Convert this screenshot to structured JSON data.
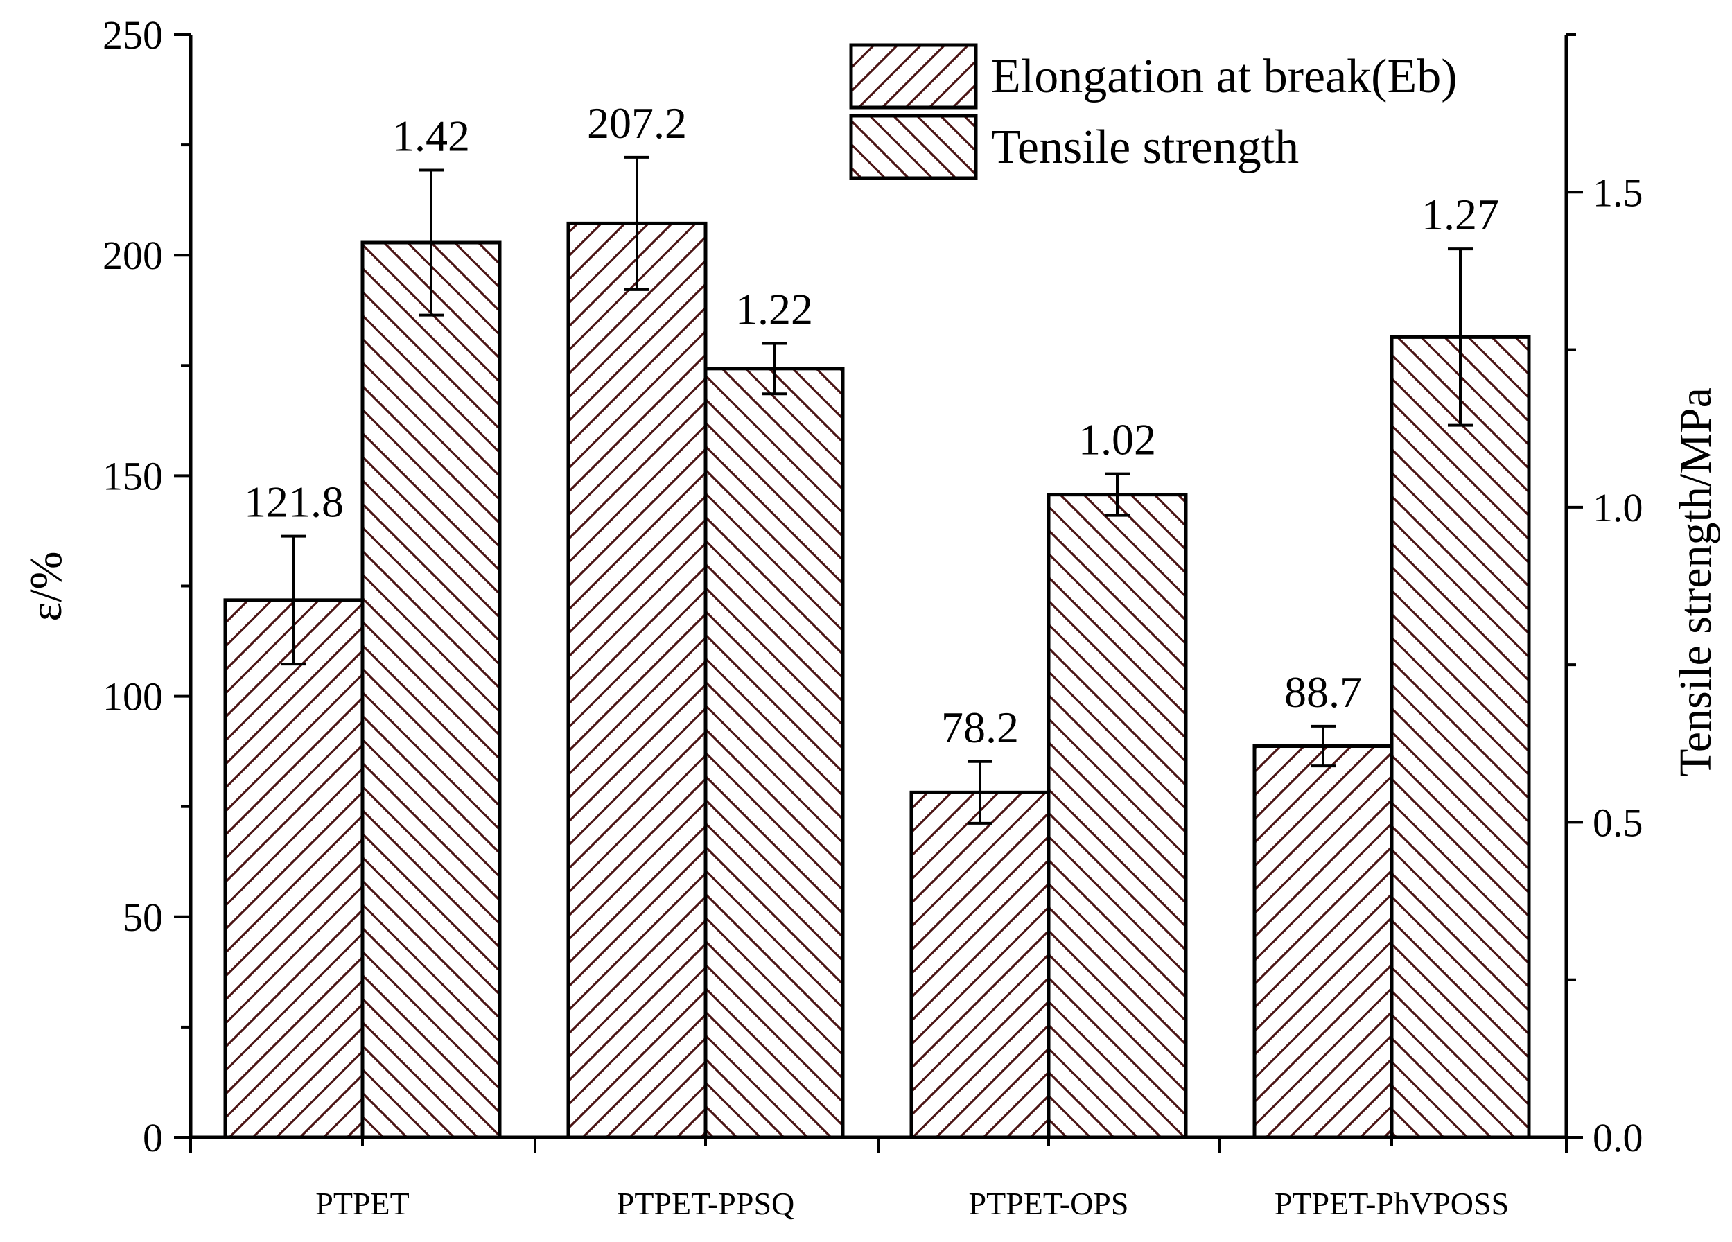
{
  "chart_data": {
    "type": "bar",
    "categories": [
      "PTPET",
      "PTPET-PPSQ",
      "PTPET-OPS",
      "PTPET-PhVPOSS"
    ],
    "series": [
      {
        "name": "Elongation at break(Eb)",
        "axis": "left",
        "values": [
          121.8,
          207.2,
          78.2,
          88.7
        ],
        "errors": [
          14.5,
          15.0,
          7.0,
          4.5
        ],
        "labels": [
          "121.8",
          "207.2",
          "78.2",
          "88.7"
        ]
      },
      {
        "name": "Tensile strength",
        "axis": "right",
        "values": [
          1.42,
          1.22,
          1.02,
          1.27
        ],
        "errors": [
          0.115,
          0.04,
          0.033,
          0.14
        ],
        "labels": [
          "1.42",
          "1.22",
          "1.02",
          "1.27"
        ]
      }
    ],
    "left_axis": {
      "label": "ε/%",
      "ylim": [
        0,
        250
      ],
      "ticks": [
        "0",
        "50",
        "100",
        "150",
        "200",
        "250"
      ]
    },
    "right_axis": {
      "label": "Tensile strength/MPa",
      "ylim": [
        0,
        1.75
      ],
      "ticks": [
        "0.0",
        "0.5",
        "1.0",
        "1.5"
      ]
    },
    "legend_position": "top-right",
    "grid": false
  },
  "colors": {
    "bar_stroke": "#000000",
    "hatch": "#4a1414"
  }
}
